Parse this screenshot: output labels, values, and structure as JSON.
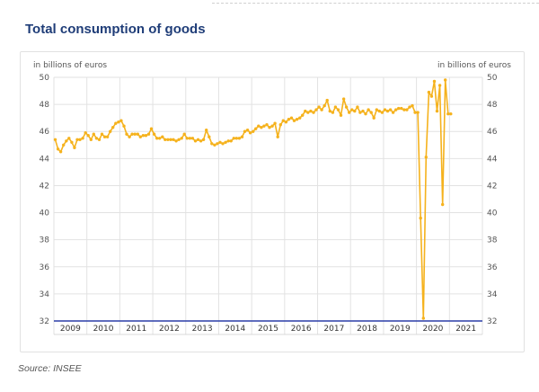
{
  "title": "Total consumption of goods",
  "source": "Source: INSEE",
  "colors": {
    "line": "#f5b21d",
    "baseline": "#2b3fa8",
    "title": "#1f3d78"
  },
  "chart_data": {
    "type": "line",
    "left_axis_label": "in billions of euros",
    "right_axis_label": "in billions of euros",
    "ylim": [
      32,
      50
    ],
    "yticks": [
      32,
      34,
      36,
      38,
      40,
      42,
      44,
      46,
      48,
      50
    ],
    "x_categories": [
      "2009",
      "2010",
      "2011",
      "2012",
      "2013",
      "2014",
      "2015",
      "2016",
      "2017",
      "2018",
      "2019",
      "2020",
      "2021"
    ],
    "grid": true,
    "legend": "none",
    "series": [
      {
        "x_start": "2009-01",
        "frequency": "monthly",
        "values": [
          45.4,
          44.7,
          44.5,
          45.0,
          45.3,
          45.5,
          45.2,
          44.8,
          45.4,
          45.4,
          45.5,
          45.9,
          45.7,
          45.4,
          45.8,
          45.5,
          45.4,
          45.8,
          45.6,
          45.6,
          46.0,
          46.3,
          46.6,
          46.7,
          46.8,
          46.4,
          45.8,
          45.6,
          45.8,
          45.8,
          45.8,
          45.6,
          45.7,
          45.7,
          45.8,
          46.2,
          45.8,
          45.5,
          45.5,
          45.6,
          45.4,
          45.4,
          45.4,
          45.4,
          45.3,
          45.4,
          45.5,
          45.8,
          45.5,
          45.5,
          45.5,
          45.3,
          45.4,
          45.3,
          45.4,
          46.1,
          45.6,
          45.1,
          45.0,
          45.1,
          45.2,
          45.1,
          45.2,
          45.3,
          45.3,
          45.5,
          45.5,
          45.5,
          45.6,
          46.0,
          46.1,
          45.9,
          46.0,
          46.2,
          46.4,
          46.3,
          46.4,
          46.5,
          46.3,
          46.4,
          46.6,
          45.6,
          46.5,
          46.8,
          46.7,
          46.9,
          47.0,
          46.8,
          46.9,
          47.0,
          47.2,
          47.5,
          47.4,
          47.5,
          47.4,
          47.6,
          47.8,
          47.6,
          47.9,
          48.3,
          47.5,
          47.4,
          47.8,
          47.6,
          47.2,
          48.4,
          47.8,
          47.4,
          47.6,
          47.5,
          47.8,
          47.4,
          47.5,
          47.3,
          47.6,
          47.4,
          47.0,
          47.6,
          47.5,
          47.4,
          47.6,
          47.5,
          47.6,
          47.4,
          47.6,
          47.7,
          47.7,
          47.6,
          47.6,
          47.8,
          47.9,
          47.4,
          47.4,
          39.6,
          32.2,
          44.1,
          48.9,
          48.6,
          49.7,
          47.5,
          49.4,
          40.6,
          49.8,
          47.3,
          47.3
        ]
      }
    ]
  }
}
